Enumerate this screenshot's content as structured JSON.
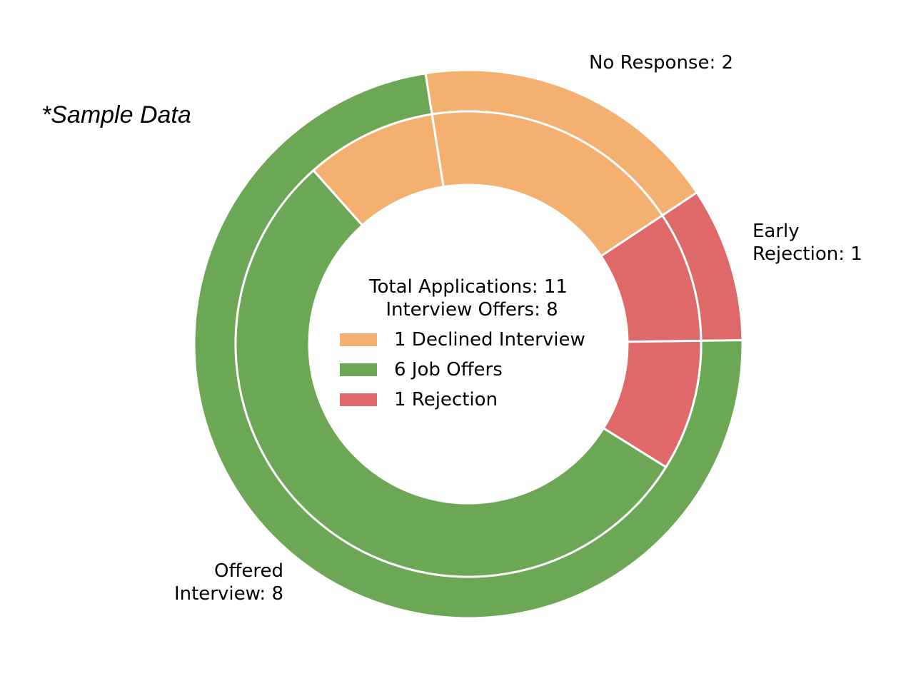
{
  "chart_data": {
    "type": "nested-donut",
    "watermark": "*Sample Data",
    "center_text": [
      "Total Applications: 11",
      "Interview Offers: 8"
    ],
    "outer_ring": [
      {
        "label_lines": [
          "No Response: 2"
        ],
        "value": 2,
        "color": "#f4b071"
      },
      {
        "label_lines": [
          "Early",
          "Rejection: 1"
        ],
        "value": 1,
        "color": "#df6868"
      },
      {
        "label_lines": [
          "Offered",
          "Interview: 8"
        ],
        "value": 8,
        "color": "#6ca755"
      }
    ],
    "inner_ring": [
      {
        "group": "No Response",
        "value": 2,
        "color": "#f4b071"
      },
      {
        "group": "Early Rejection",
        "value": 1,
        "color": "#df6868"
      },
      {
        "group": "Rejection",
        "value": 1,
        "color": "#df6868"
      },
      {
        "group": "Job Offers",
        "value": 6,
        "color": "#6ca755"
      },
      {
        "group": "Declined Interview",
        "value": 1,
        "color": "#f4b071"
      }
    ],
    "legend": [
      {
        "label": "1 Declined Interview",
        "color": "#f4b071"
      },
      {
        "label": "6 Job Offers",
        "color": "#6ca755"
      },
      {
        "label": "1 Rejection",
        "color": "#df6868"
      }
    ],
    "start_angle_deg": 99,
    "direction": "clockwise"
  }
}
